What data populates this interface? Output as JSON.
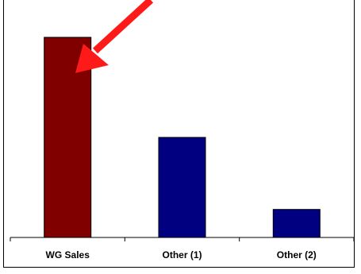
{
  "chart_data": {
    "type": "bar",
    "categories": [
      "WG Sales",
      "Other (1)",
      "Other (2)"
    ],
    "values": [
      100,
      50,
      14
    ],
    "ylim": [
      0,
      100
    ],
    "grid": false,
    "legend": "none",
    "colors": [
      "#800000",
      "#000080",
      "#000080"
    ],
    "annotation": {
      "type": "arrow",
      "color": "#ff1a1a",
      "points_to": "WG Sales"
    }
  }
}
